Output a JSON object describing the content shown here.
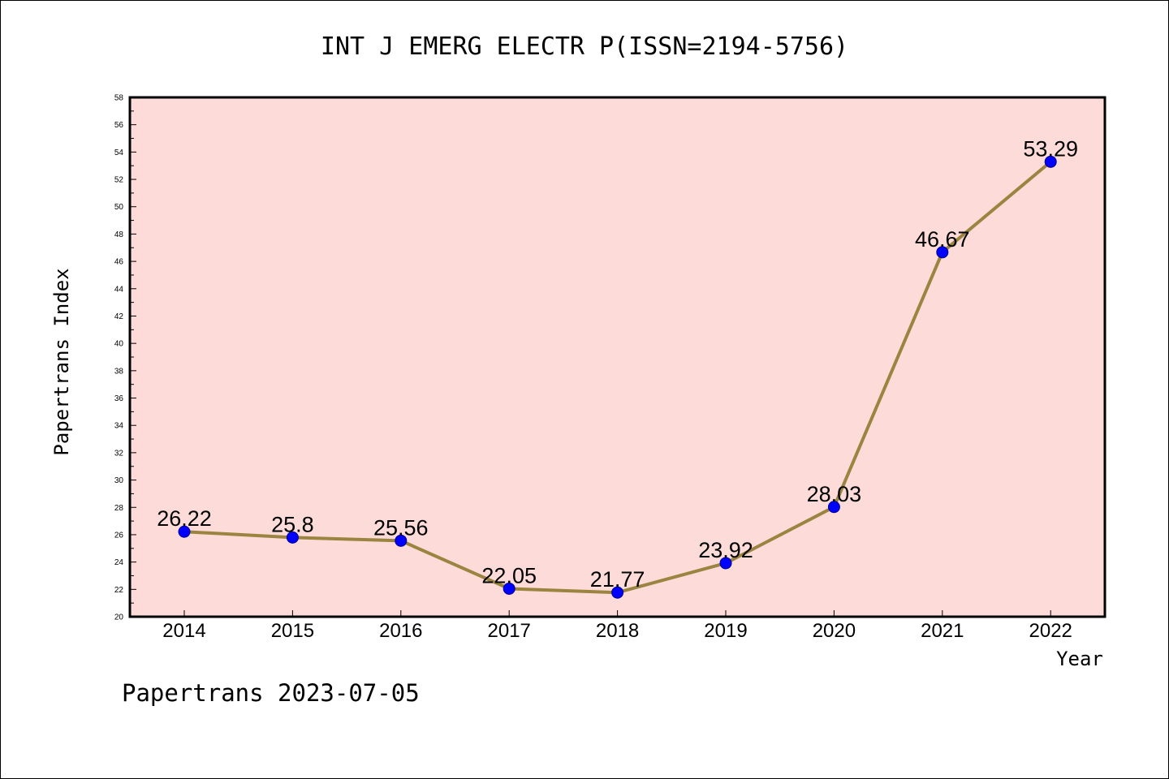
{
  "chart_data": {
    "type": "line",
    "title": "INT J EMERG ELECTR P(ISSN=2194-5756)",
    "xlabel": "Year",
    "ylabel": "Papertrans Index",
    "categories": [
      "2014",
      "2015",
      "2016",
      "2017",
      "2018",
      "2019",
      "2020",
      "2021",
      "2022"
    ],
    "values": [
      26.22,
      25.8,
      25.56,
      22.05,
      21.77,
      23.92,
      28.03,
      46.67,
      53.29
    ],
    "data_labels": [
      "26.22",
      "25.8",
      "25.56",
      "22.05",
      "21.77",
      "23.92",
      "28.03",
      "46.67",
      "53.29"
    ],
    "ylim": [
      20,
      58
    ],
    "yticks": [
      20,
      22,
      24,
      26,
      28,
      30,
      32,
      34,
      36,
      38,
      40,
      42,
      44,
      46,
      48,
      50,
      52,
      54,
      56,
      58
    ],
    "grid": false,
    "legend": "none",
    "colors": {
      "plot_background": "#fddbd8",
      "line": "#9a8440",
      "marker_fill": "#0000ff",
      "marker_stroke": "#00008b",
      "axis": "#000000"
    }
  },
  "footer": "Papertrans 2023-07-05"
}
